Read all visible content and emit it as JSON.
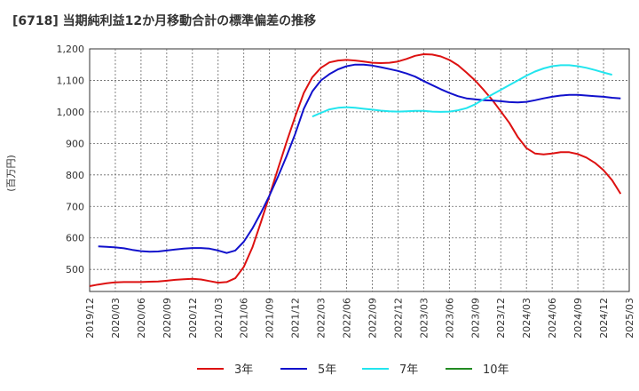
{
  "chart_data": {
    "type": "line",
    "title": "[6718]  当期純利益12か月移動合計の標準偏差の推移",
    "ylabel": "(百万円)",
    "xlabel": "",
    "ylim": [
      430,
      1200
    ],
    "yticks": [
      500,
      600,
      700,
      800,
      900,
      "1,000",
      "1,100",
      "1,200"
    ],
    "ytick_values": [
      500,
      600,
      700,
      800,
      900,
      1000,
      1100,
      1200
    ],
    "x_start": "2019/12",
    "x_end": "2025/03",
    "x_ticks": [
      "2019/12",
      "2020/03",
      "2020/06",
      "2020/09",
      "2020/12",
      "2021/03",
      "2021/06",
      "2021/09",
      "2021/12",
      "2022/03",
      "2022/06",
      "2022/09",
      "2022/12",
      "2023/03",
      "2023/06",
      "2023/09",
      "2023/12",
      "2024/03",
      "2024/06",
      "2024/09",
      "2024/12",
      "2025/03"
    ],
    "grid": true,
    "legend_position": "bottom",
    "series": [
      {
        "name": "3年",
        "color": "#dd1111",
        "points": [
          [
            "2019/12",
            447
          ],
          [
            "2020/01",
            452
          ],
          [
            "2020/02",
            456
          ],
          [
            "2020/03",
            459
          ],
          [
            "2020/04",
            460
          ],
          [
            "2020/05",
            460
          ],
          [
            "2020/06",
            460
          ],
          [
            "2020/07",
            461
          ],
          [
            "2020/08",
            462
          ],
          [
            "2020/09",
            464
          ],
          [
            "2020/10",
            467
          ],
          [
            "2020/11",
            469
          ],
          [
            "2020/12",
            470
          ],
          [
            "2021/01",
            468
          ],
          [
            "2021/02",
            463
          ],
          [
            "2021/03",
            458
          ],
          [
            "2021/04",
            460
          ],
          [
            "2021/05",
            472
          ],
          [
            "2021/06",
            508
          ],
          [
            "2021/07",
            570
          ],
          [
            "2021/08",
            650
          ],
          [
            "2021/09",
            735
          ],
          [
            "2021/10",
            820
          ],
          [
            "2021/11",
            905
          ],
          [
            "2021/12",
            985
          ],
          [
            "2022/01",
            1060
          ],
          [
            "2022/02",
            1110
          ],
          [
            "2022/03",
            1140
          ],
          [
            "2022/04",
            1157
          ],
          [
            "2022/05",
            1163
          ],
          [
            "2022/06",
            1165
          ],
          [
            "2022/07",
            1163
          ],
          [
            "2022/08",
            1160
          ],
          [
            "2022/09",
            1156
          ],
          [
            "2022/10",
            1155
          ],
          [
            "2022/11",
            1156
          ],
          [
            "2022/12",
            1160
          ],
          [
            "2023/01",
            1168
          ],
          [
            "2023/02",
            1178
          ],
          [
            "2023/03",
            1183
          ],
          [
            "2023/04",
            1182
          ],
          [
            "2023/05",
            1176
          ],
          [
            "2023/06",
            1165
          ],
          [
            "2023/07",
            1148
          ],
          [
            "2023/08",
            1125
          ],
          [
            "2023/09",
            1100
          ],
          [
            "2023/10",
            1070
          ],
          [
            "2023/11",
            1038
          ],
          [
            "2023/12",
            1002
          ],
          [
            "2024/01",
            965
          ],
          [
            "2024/02",
            920
          ],
          [
            "2024/03",
            885
          ],
          [
            "2024/04",
            868
          ],
          [
            "2024/05",
            865
          ],
          [
            "2024/06",
            868
          ],
          [
            "2024/07",
            872
          ],
          [
            "2024/08",
            872
          ],
          [
            "2024/09",
            866
          ],
          [
            "2024/10",
            855
          ],
          [
            "2024/11",
            838
          ],
          [
            "2024/12",
            815
          ],
          [
            "2025/01",
            783
          ],
          [
            "2025/02",
            740
          ]
        ]
      },
      {
        "name": "5年",
        "color": "#1111cc",
        "points": [
          [
            "2020/01",
            573
          ],
          [
            "2020/02",
            572
          ],
          [
            "2020/03",
            570
          ],
          [
            "2020/04",
            567
          ],
          [
            "2020/05",
            562
          ],
          [
            "2020/06",
            558
          ],
          [
            "2020/07",
            556
          ],
          [
            "2020/08",
            557
          ],
          [
            "2020/09",
            560
          ],
          [
            "2020/10",
            563
          ],
          [
            "2020/11",
            566
          ],
          [
            "2020/12",
            568
          ],
          [
            "2021/01",
            568
          ],
          [
            "2021/02",
            566
          ],
          [
            "2021/03",
            560
          ],
          [
            "2021/04",
            552
          ],
          [
            "2021/05",
            560
          ],
          [
            "2021/06",
            588
          ],
          [
            "2021/07",
            630
          ],
          [
            "2021/08",
            680
          ],
          [
            "2021/09",
            735
          ],
          [
            "2021/10",
            795
          ],
          [
            "2021/11",
            860
          ],
          [
            "2021/12",
            930
          ],
          [
            "2022/01",
            1010
          ],
          [
            "2022/02",
            1065
          ],
          [
            "2022/03",
            1100
          ],
          [
            "2022/04",
            1120
          ],
          [
            "2022/05",
            1135
          ],
          [
            "2022/06",
            1145
          ],
          [
            "2022/07",
            1150
          ],
          [
            "2022/08",
            1150
          ],
          [
            "2022/09",
            1147
          ],
          [
            "2022/10",
            1142
          ],
          [
            "2022/11",
            1136
          ],
          [
            "2022/12",
            1130
          ],
          [
            "2023/01",
            1122
          ],
          [
            "2023/02",
            1112
          ],
          [
            "2023/03",
            1098
          ],
          [
            "2023/04",
            1085
          ],
          [
            "2023/05",
            1072
          ],
          [
            "2023/06",
            1060
          ],
          [
            "2023/07",
            1050
          ],
          [
            "2023/08",
            1043
          ],
          [
            "2023/09",
            1040
          ],
          [
            "2023/10",
            1037
          ],
          [
            "2023/11",
            1036
          ],
          [
            "2023/12",
            1034
          ],
          [
            "2024/01",
            1031
          ],
          [
            "2024/02",
            1030
          ],
          [
            "2024/03",
            1032
          ],
          [
            "2024/04",
            1037
          ],
          [
            "2024/05",
            1043
          ],
          [
            "2024/06",
            1048
          ],
          [
            "2024/07",
            1052
          ],
          [
            "2024/08",
            1054
          ],
          [
            "2024/09",
            1054
          ],
          [
            "2024/10",
            1052
          ],
          [
            "2024/11",
            1050
          ],
          [
            "2024/12",
            1048
          ],
          [
            "2025/01",
            1045
          ],
          [
            "2025/02",
            1043
          ]
        ]
      },
      {
        "name": "7年",
        "color": "#22e5ee",
        "points": [
          [
            "2022/02",
            985
          ],
          [
            "2022/03",
            997
          ],
          [
            "2022/04",
            1008
          ],
          [
            "2022/05",
            1013
          ],
          [
            "2022/06",
            1015
          ],
          [
            "2022/07",
            1013
          ],
          [
            "2022/08",
            1010
          ],
          [
            "2022/09",
            1007
          ],
          [
            "2022/10",
            1004
          ],
          [
            "2022/11",
            1002
          ],
          [
            "2022/12",
            1001
          ],
          [
            "2023/01",
            1002
          ],
          [
            "2023/02",
            1003
          ],
          [
            "2023/03",
            1003
          ],
          [
            "2023/04",
            1001
          ],
          [
            "2023/05",
            1000
          ],
          [
            "2023/06",
            1001
          ],
          [
            "2023/07",
            1005
          ],
          [
            "2023/08",
            1012
          ],
          [
            "2023/09",
            1024
          ],
          [
            "2023/10",
            1040
          ],
          [
            "2023/11",
            1055
          ],
          [
            "2023/12",
            1070
          ],
          [
            "2024/01",
            1085
          ],
          [
            "2024/02",
            1100
          ],
          [
            "2024/03",
            1115
          ],
          [
            "2024/04",
            1128
          ],
          [
            "2024/05",
            1138
          ],
          [
            "2024/06",
            1145
          ],
          [
            "2024/07",
            1148
          ],
          [
            "2024/08",
            1148
          ],
          [
            "2024/09",
            1145
          ],
          [
            "2024/10",
            1140
          ],
          [
            "2024/11",
            1133
          ],
          [
            "2024/12",
            1125
          ],
          [
            "2025/01",
            1118
          ]
        ]
      },
      {
        "name": "10年",
        "color": "#228b22",
        "points": []
      }
    ]
  }
}
